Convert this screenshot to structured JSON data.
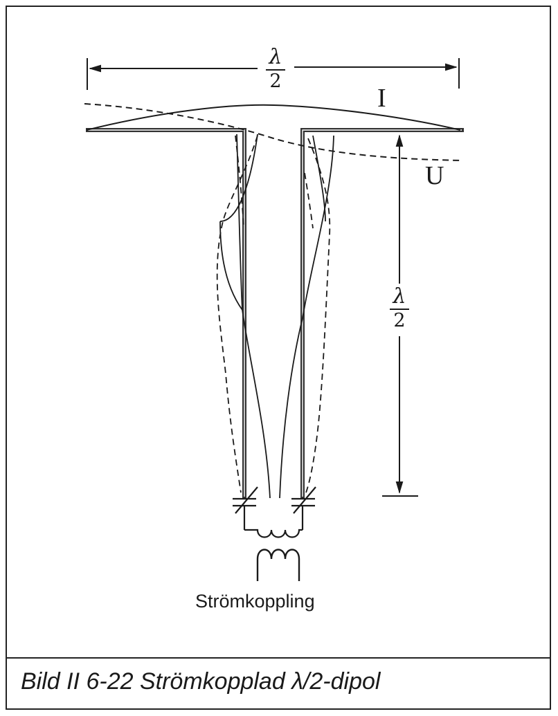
{
  "caption": "Bild II 6-22  Strömkopplad λ/2-dipol",
  "coupling_label": "Strömkoppling",
  "top_dimension": {
    "numerator": "λ",
    "denominator": "2"
  },
  "side_dimension": {
    "numerator": "λ",
    "denominator": "2"
  },
  "current_label": "I",
  "voltage_label": "U",
  "colors": {
    "ink": "#1a1a1a",
    "background": "#ffffff"
  }
}
